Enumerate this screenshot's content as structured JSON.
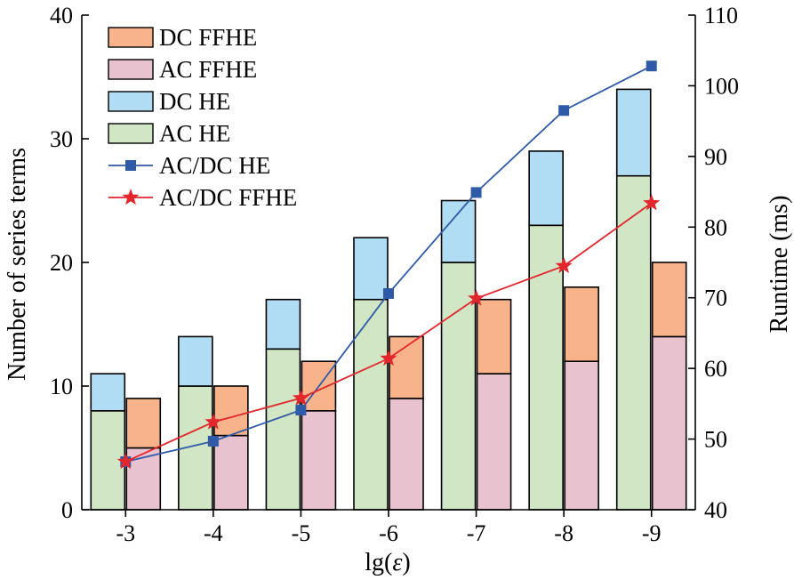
{
  "chart_data": {
    "type": "bar",
    "categories": [
      "-3",
      "-4",
      "-5",
      "-6",
      "-7",
      "-8",
      "-9"
    ],
    "xlabel_prefix": "lg(",
    "xlabel_var": "ε",
    "xlabel_suffix": ")",
    "ylabel_left": "Number of series terms",
    "ylabel_right": "Runtime (ms)",
    "ylim_left": [
      0,
      40
    ],
    "yticks_left": [
      0,
      10,
      20,
      30,
      40
    ],
    "ylim_right": [
      40,
      110
    ],
    "yticks_right": [
      40,
      50,
      60,
      70,
      80,
      90,
      100,
      110
    ],
    "grid": false,
    "legend_position": "top-left",
    "bar_groups": [
      {
        "group": "HE",
        "stack": [
          {
            "name": "AC HE",
            "values": [
              8,
              10,
              13,
              17,
              20,
              23,
              27
            ],
            "color": "#d0e6c4"
          },
          {
            "name": "DC HE",
            "values": [
              3,
              4,
              4,
              5,
              5,
              6,
              7
            ],
            "color": "#b0dcf4"
          }
        ]
      },
      {
        "group": "FFHE",
        "stack": [
          {
            "name": "AC FFHE",
            "values": [
              5,
              6,
              8,
              9,
              11,
              12,
              14
            ],
            "color": "#e9c2cf"
          },
          {
            "name": "DC FFHE",
            "values": [
              4,
              4,
              4,
              5,
              6,
              6,
              6
            ],
            "color": "#f9b38a"
          }
        ]
      }
    ],
    "lines": [
      {
        "name": "AC/DC HE",
        "axis": "right",
        "values": [
          46.8,
          49.7,
          54.1,
          70.6,
          84.9,
          96.5,
          102.8
        ],
        "color": "#2e5aa7",
        "marker": "square"
      },
      {
        "name": "AC/DC FFHE",
        "axis": "right",
        "values": [
          46.8,
          52.4,
          55.8,
          61.4,
          69.9,
          74.5,
          83.4
        ],
        "color": "#e3262c",
        "marker": "star"
      }
    ],
    "legend_order": [
      "DC FFHE",
      "AC FFHE",
      "DC HE",
      "AC HE",
      "AC/DC HE",
      "AC/DC FFHE"
    ]
  }
}
